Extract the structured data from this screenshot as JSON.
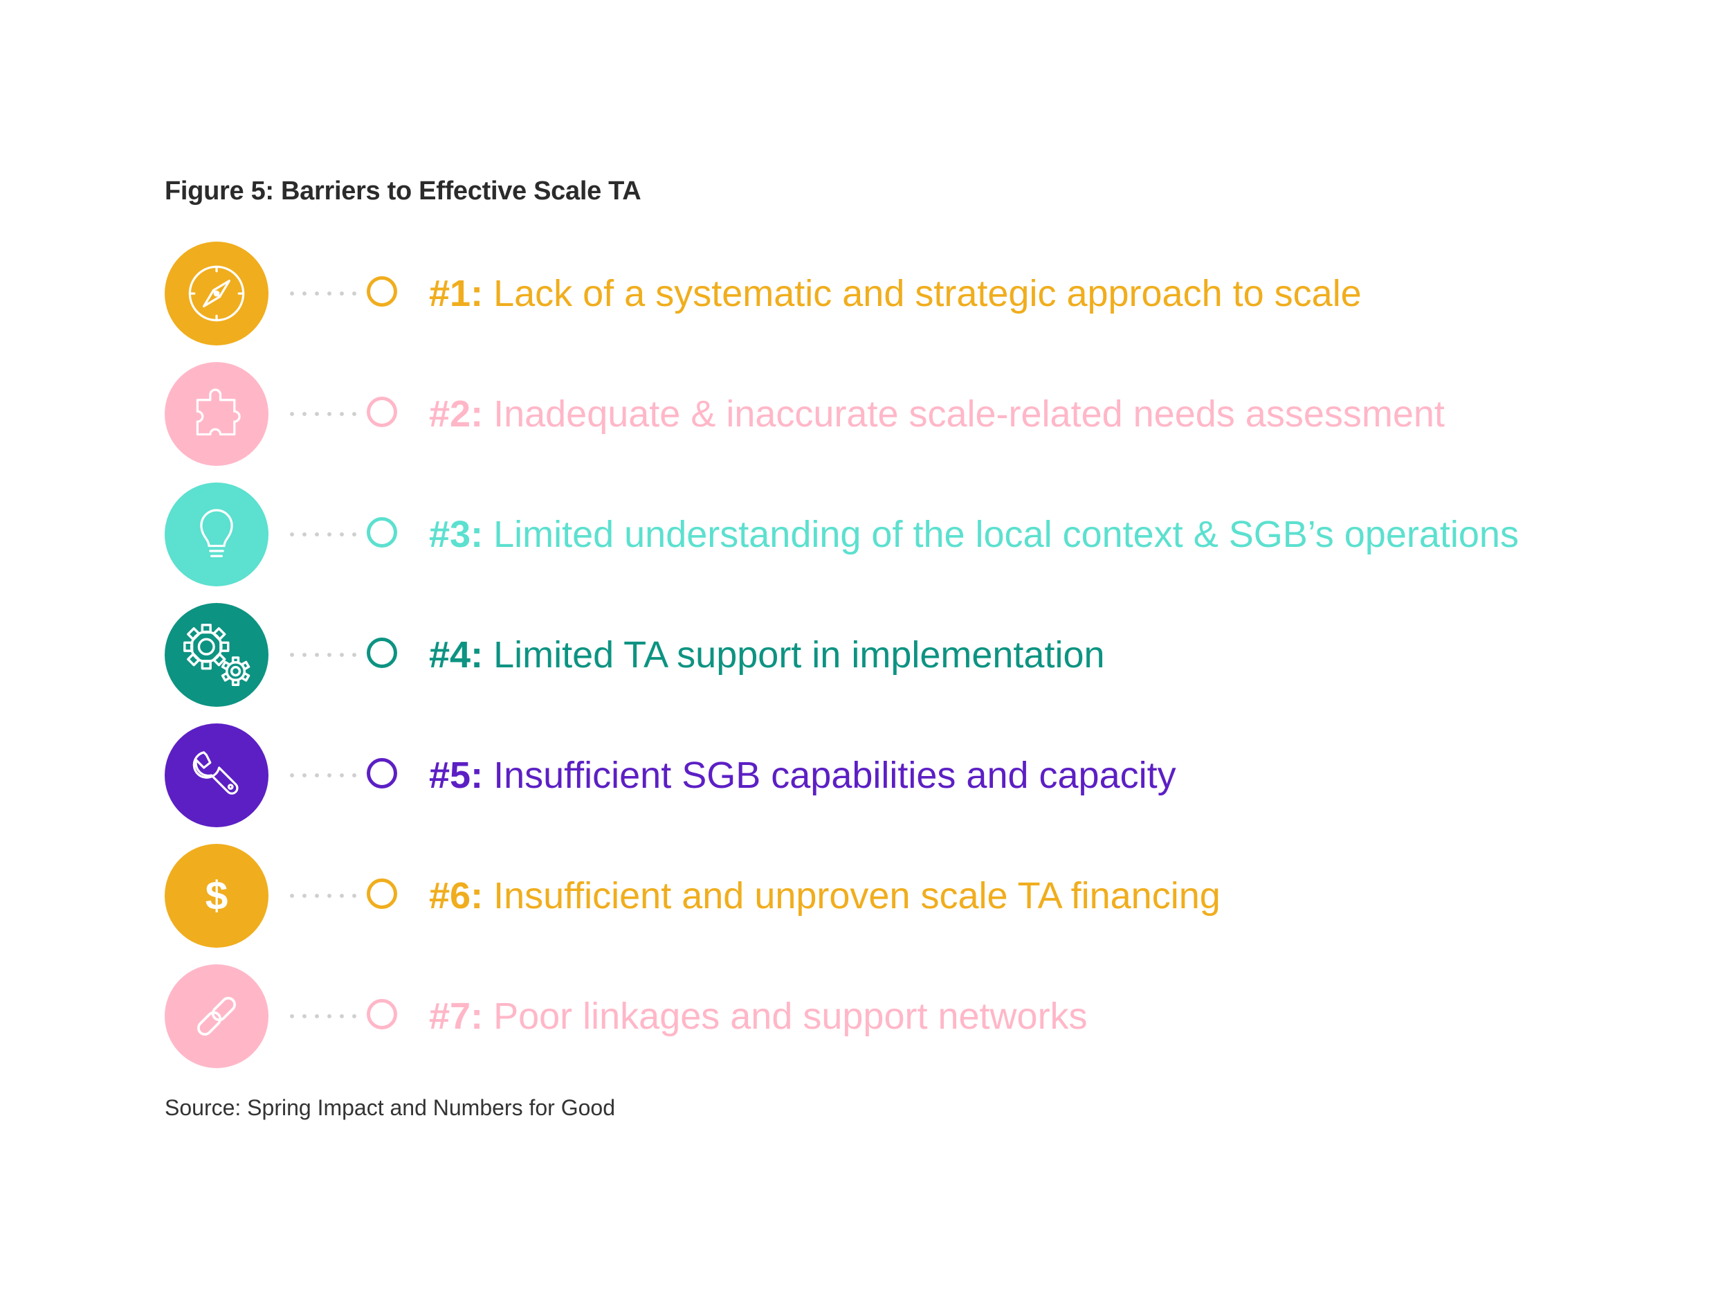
{
  "figure": {
    "title": "Figure 5: Barriers to Effective Scale TA",
    "source": "Source: Spring Impact and Numbers for Good"
  },
  "colors": {
    "yellow": "#f0ad1d",
    "pink": "#ffb7c8",
    "aqua": "#5ce0cf",
    "teal": "#0d9382",
    "purple": "#5c1fc4"
  },
  "barriers": [
    {
      "num": "#1:",
      "text": "Lack of a systematic and strategic approach to scale",
      "icon": "compass-icon",
      "color": "#f0ad1d"
    },
    {
      "num": "#2:",
      "text": "Inadequate & inaccurate scale-related needs assessment",
      "icon": "puzzle-icon",
      "color": "#ffb7c8"
    },
    {
      "num": "#3:",
      "text": "Limited understanding of the local context & SGB’s operations",
      "icon": "lightbulb-icon",
      "color": "#5ce0cf"
    },
    {
      "num": "#4:",
      "text": "Limited TA support in implementation",
      "icon": "gears-icon",
      "color": "#0d9382"
    },
    {
      "num": "#5:",
      "text": "Insufficient SGB capabilities and capacity",
      "icon": "wrench-icon",
      "color": "#5c1fc4"
    },
    {
      "num": "#6:",
      "text": "Insufficient and unproven scale TA financing",
      "icon": "dollar-icon",
      "color": "#f0ad1d"
    },
    {
      "num": "#7:",
      "text": "Poor linkages and support networks",
      "icon": "link-icon",
      "color": "#ffb7c8"
    }
  ]
}
